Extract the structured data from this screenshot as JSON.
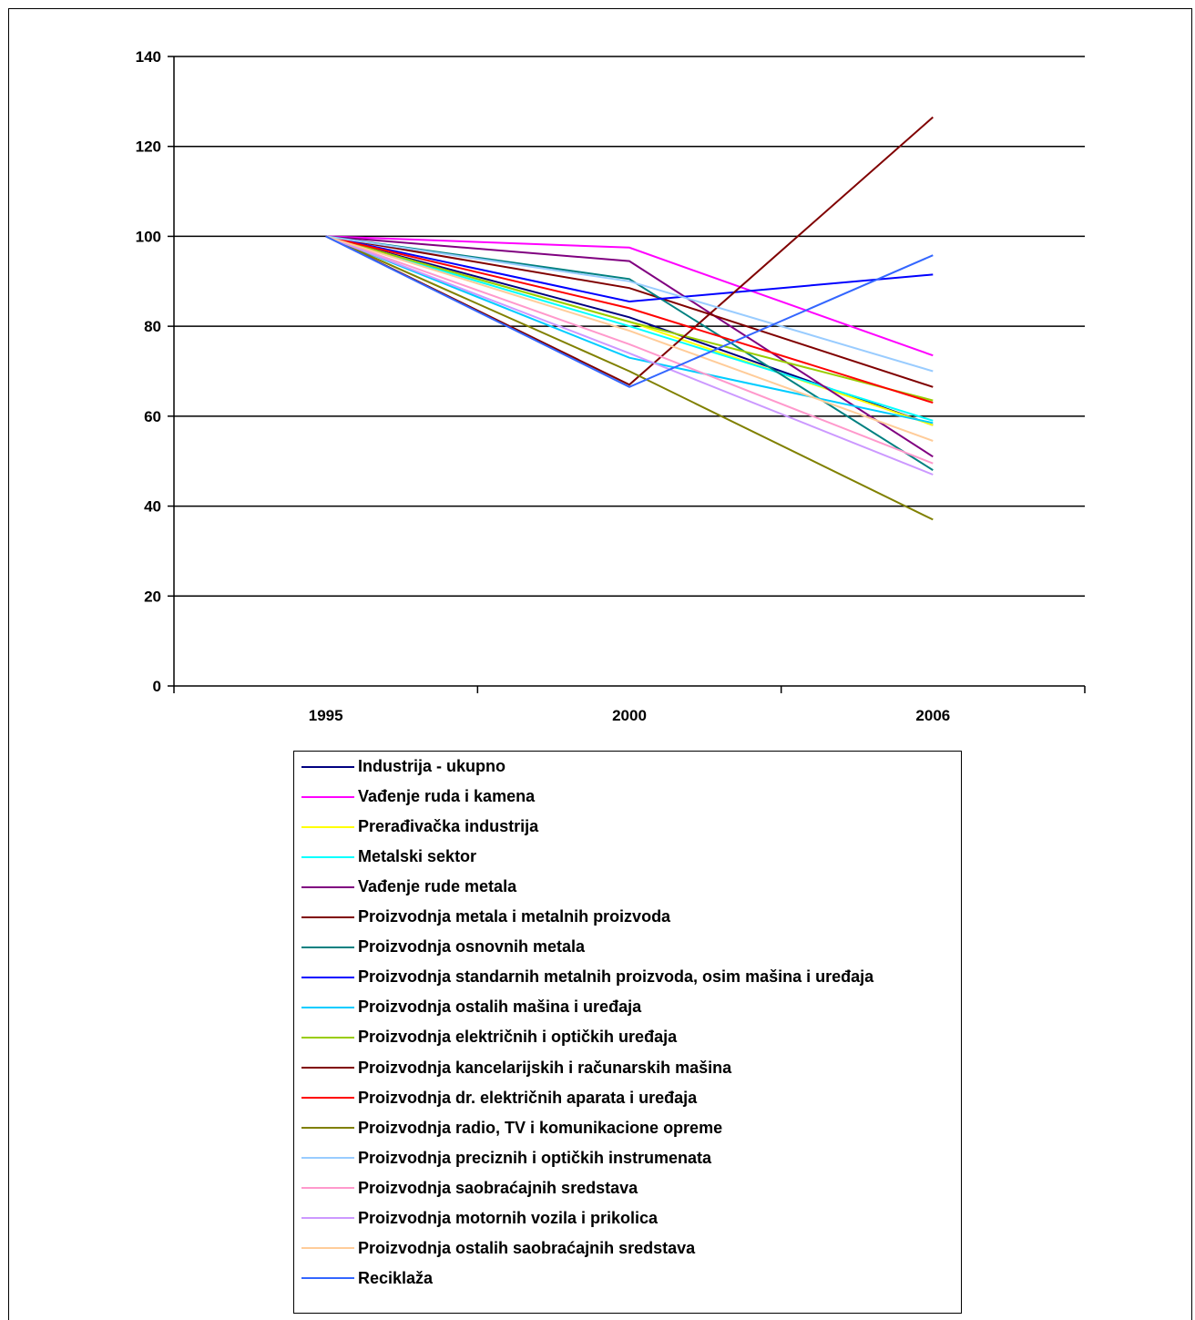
{
  "chart_data": {
    "type": "line",
    "title": "",
    "xlabel": "",
    "ylabel": "",
    "categories": [
      "1995",
      "2000",
      "2006"
    ],
    "ylim": [
      0,
      140
    ],
    "yticks": [
      "0",
      "20",
      "40",
      "60",
      "80",
      "100",
      "120",
      "140"
    ],
    "grid": true,
    "legend_position": "bottom",
    "series": [
      {
        "name": "Industrija - ukupno",
        "color": "#000080",
        "values": [
          100,
          82,
          58
        ]
      },
      {
        "name": "Vađenje ruda i kamena",
        "color": "#ff00ff",
        "values": [
          100,
          97.5,
          73.5
        ]
      },
      {
        "name": "Prerađivačka industrija",
        "color": "#ffff00",
        "values": [
          100,
          81,
          58
        ]
      },
      {
        "name": "Metalski sektor",
        "color": "#00ffff",
        "values": [
          100,
          80,
          59
        ]
      },
      {
        "name": "Vađenje rude metala",
        "color": "#800080",
        "values": [
          100,
          94.5,
          51
        ]
      },
      {
        "name": "Proizvodnja metala i metalnih proizvoda",
        "color": "#800000",
        "values": [
          100,
          88.5,
          66.5
        ]
      },
      {
        "name": "Proizvodnja osnovnih metala",
        "color": "#008080",
        "values": [
          100,
          90.5,
          48
        ]
      },
      {
        "name": "Proizvodnja standarnih metalnih proizvoda, osim mašina i uređaja",
        "color": "#0000ff",
        "values": [
          100,
          85.5,
          91.5
        ]
      },
      {
        "name": "Proizvodnja ostalih mašina i uređaja",
        "color": "#00ccff",
        "values": [
          100,
          73,
          58.5
        ]
      },
      {
        "name": "Proizvodnja električnih i optičkih uređaja",
        "color": "#99cc00",
        "values": [
          100,
          81,
          63.5
        ]
      },
      {
        "name": "Proizvodnja kancelarijskih i računarskih mašina",
        "color": "#800000",
        "values": [
          100,
          67,
          126.5
        ]
      },
      {
        "name": "Proizvodnja dr. električnih aparata i uređaja",
        "color": "#ff0000",
        "values": [
          100,
          84,
          63
        ]
      },
      {
        "name": "Proizvodnja radio, TV i komunikacione opreme",
        "color": "#808000",
        "values": [
          100,
          70,
          37
        ]
      },
      {
        "name": "Proizvodnja preciznih i optičkih instrumenata",
        "color": "#99ccff",
        "values": [
          100,
          90,
          70
        ]
      },
      {
        "name": "Proizvodnja saobraćajnih sredstava",
        "color": "#ff99cc",
        "values": [
          100,
          76,
          49.5
        ]
      },
      {
        "name": "Proizvodnja motornih vozila i prikolica",
        "color": "#cc99ff",
        "values": [
          100,
          74,
          47
        ]
      },
      {
        "name": "Proizvodnja ostalih saobraćajnih sredstava",
        "color": "#ffcc99",
        "values": [
          100,
          79,
          54.5
        ]
      },
      {
        "name": "Reciklaža",
        "color": "#3366ff",
        "values": [
          100,
          66.5,
          95.8
        ]
      }
    ]
  }
}
